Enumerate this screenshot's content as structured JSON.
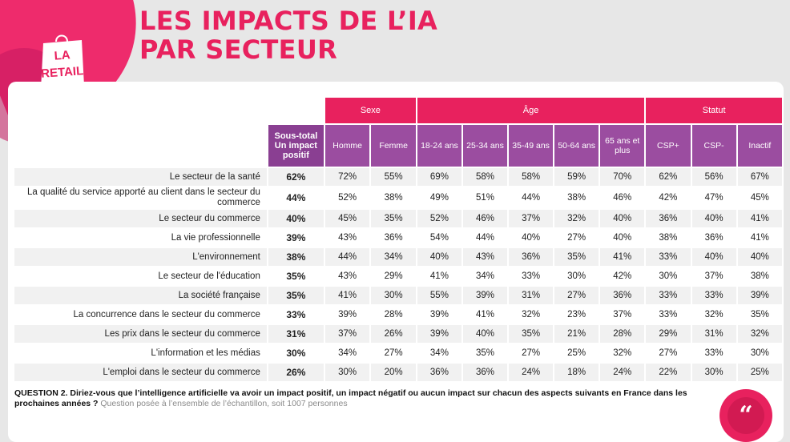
{
  "brand": {
    "logo_text": "LA RETAIL TECH",
    "colors": {
      "primary": "#e8215e",
      "purple": "#9b4da0",
      "background": "#e7e7e7"
    }
  },
  "title": {
    "line1": "LES IMPACTS DE L’IA",
    "line2": "PAR SECTEUR"
  },
  "table": {
    "groups": {
      "sexe": "Sexe",
      "age": "Âge",
      "statut": "Statut"
    },
    "headers": {
      "total": "Sous-total Un impact positif",
      "homme": "Homme",
      "femme": "Femme",
      "a1824": "18-24 ans",
      "a2534": "25-34 ans",
      "a3549": "35-49 ans",
      "a5064": "50-64 ans",
      "a65": "65 ans et plus",
      "cspp": "CSP+",
      "cspm": "CSP-",
      "inactif": "Inactif"
    },
    "rows": [
      {
        "label": "Le secteur de la santé",
        "v": [
          "62%",
          "72%",
          "55%",
          "69%",
          "58%",
          "58%",
          "59%",
          "70%",
          "62%",
          "56%",
          "67%"
        ]
      },
      {
        "label": "La qualité du service apporté au client dans le secteur du commerce",
        "v": [
          "44%",
          "52%",
          "38%",
          "49%",
          "51%",
          "44%",
          "38%",
          "46%",
          "42%",
          "47%",
          "45%"
        ]
      },
      {
        "label": "Le secteur du commerce",
        "v": [
          "40%",
          "45%",
          "35%",
          "52%",
          "46%",
          "37%",
          "32%",
          "40%",
          "36%",
          "40%",
          "41%"
        ]
      },
      {
        "label": "La vie professionnelle",
        "v": [
          "39%",
          "43%",
          "36%",
          "54%",
          "44%",
          "40%",
          "27%",
          "40%",
          "38%",
          "36%",
          "41%"
        ]
      },
      {
        "label": "L'environnement",
        "v": [
          "38%",
          "44%",
          "34%",
          "40%",
          "43%",
          "36%",
          "35%",
          "41%",
          "33%",
          "40%",
          "40%"
        ]
      },
      {
        "label": "Le secteur de l'éducation",
        "v": [
          "35%",
          "43%",
          "29%",
          "41%",
          "34%",
          "33%",
          "30%",
          "42%",
          "30%",
          "37%",
          "38%"
        ]
      },
      {
        "label": "La société française",
        "v": [
          "35%",
          "41%",
          "30%",
          "55%",
          "39%",
          "31%",
          "27%",
          "36%",
          "33%",
          "33%",
          "39%"
        ]
      },
      {
        "label": "La concurrence dans le secteur du commerce",
        "v": [
          "33%",
          "39%",
          "28%",
          "39%",
          "41%",
          "32%",
          "23%",
          "37%",
          "33%",
          "32%",
          "35%"
        ]
      },
      {
        "label": "Les prix dans le secteur du commerce",
        "v": [
          "31%",
          "37%",
          "26%",
          "39%",
          "40%",
          "35%",
          "21%",
          "28%",
          "29%",
          "31%",
          "32%"
        ]
      },
      {
        "label": "L'information et les médias",
        "v": [
          "30%",
          "34%",
          "27%",
          "34%",
          "35%",
          "27%",
          "25%",
          "32%",
          "27%",
          "33%",
          "30%"
        ]
      },
      {
        "label": "L'emploi dans le secteur du commerce",
        "v": [
          "26%",
          "30%",
          "20%",
          "36%",
          "36%",
          "24%",
          "18%",
          "24%",
          "22%",
          "30%",
          "25%"
        ]
      }
    ]
  },
  "footnote": {
    "question": "QUESTION 2. Diriez-vous que l’intelligence artificielle va avoir un impact positif, un impact négatif ou aucun impact sur chacun des aspects suivants en France dans les prochaines années ?",
    "note": "Question posée à l’ensemble de l’échantillon, soit 1007 personnes"
  },
  "badge": {
    "icon": "quote-icon",
    "glyph": "“"
  }
}
